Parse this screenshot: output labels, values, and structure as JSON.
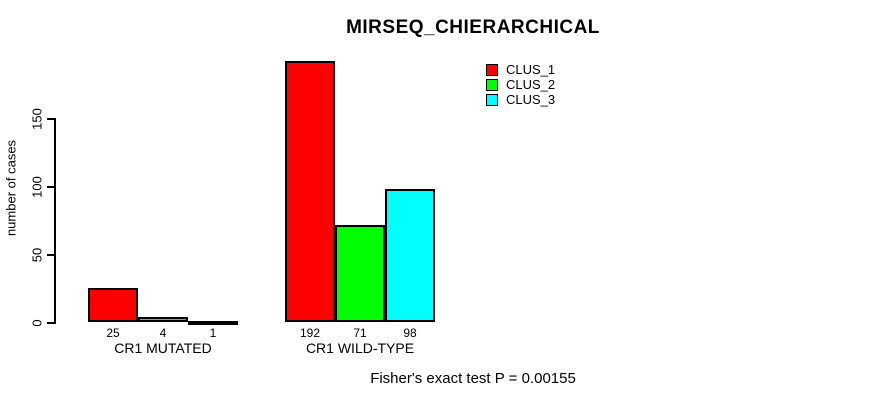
{
  "chart_data": {
    "type": "bar",
    "title": "MIRSEQ_CHIERARCHICAL",
    "ylabel": "number of cases",
    "xlabel": "",
    "yticks": [
      0,
      50,
      100,
      150
    ],
    "categories": [
      "CR1 MUTATED",
      "CR1 WILD-TYPE"
    ],
    "series": [
      {
        "name": "CLUS_1",
        "color": "#ff0000",
        "values": [
          25,
          192
        ]
      },
      {
        "name": "CLUS_2",
        "color": "#00ff00",
        "values": [
          4,
          71
        ]
      },
      {
        "name": "CLUS_3",
        "color": "#00ffff",
        "values": [
          1,
          98
        ]
      }
    ],
    "bar_value_labels": [
      [
        "25",
        "4",
        "1"
      ],
      [
        "192",
        "71",
        "98"
      ]
    ],
    "legend_position": "top-right",
    "grid": false,
    "annotation": "Fisher's exact test P = 0.00155"
  },
  "colors": {
    "background": "#ffffff",
    "axis": "#000000",
    "text": "#000000",
    "bar_border": "#000000"
  }
}
